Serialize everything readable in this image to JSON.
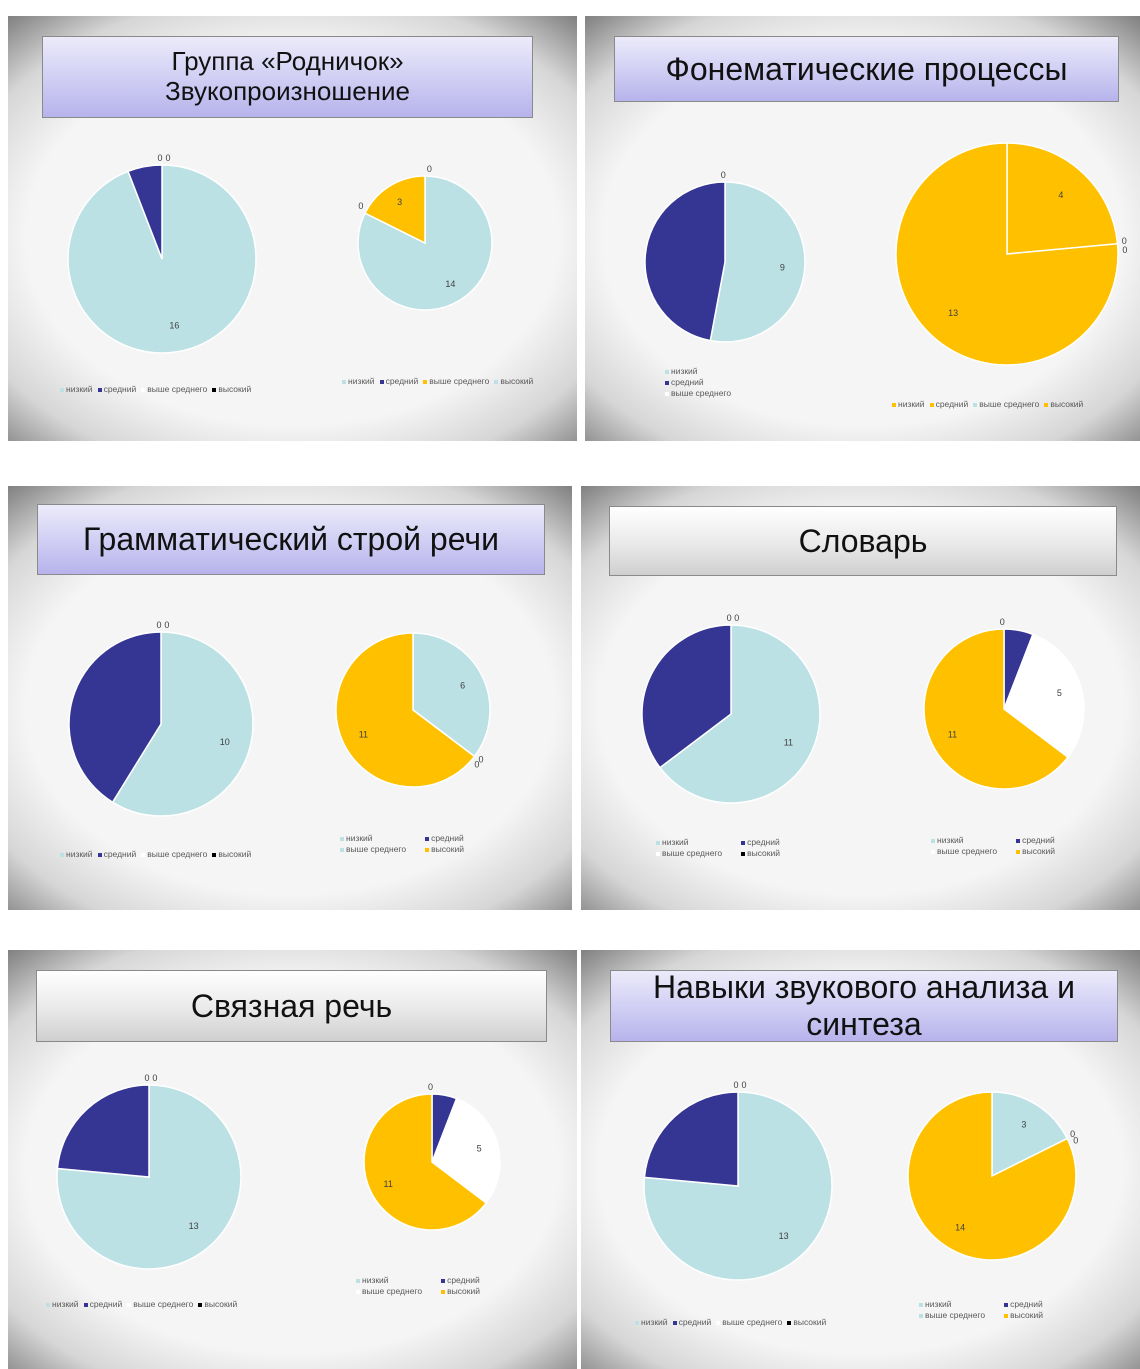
{
  "colors": {
    "low": "#BCE1E5",
    "medium": "#353594",
    "above": "#FFFFFF",
    "high": "#FFC000"
  },
  "panels": [
    {
      "title": "Группа «Родничок»\nЗвукопроизношение",
      "title_style": "blue"
    },
    {
      "title": "Фонематические процессы",
      "title_style": "blue"
    },
    {
      "title": "Грамматический строй речи",
      "title_style": "blue"
    },
    {
      "title": "Словарь",
      "title_style": "gray"
    },
    {
      "title": "Связная речь",
      "title_style": "gray"
    },
    {
      "title": "Навыки звукового анализа и синтеза",
      "title_style": "blue"
    }
  ],
  "chart_data": [
    {
      "type": "pie",
      "categories": [
        "низкий",
        "средний",
        "выше среднего",
        "высокий"
      ],
      "values": [
        16,
        1,
        0,
        0
      ],
      "colors": [
        "#BCE1E5",
        "#353594",
        "#FFFFFF",
        "#000000"
      ],
      "labels": [
        "16",
        "",
        "0",
        "0"
      ]
    },
    {
      "type": "pie",
      "categories": [
        "низкий",
        "средний",
        "выше среднего",
        "высокий"
      ],
      "values": [
        14,
        0,
        3,
        0
      ],
      "colors": [
        "#BCE1E5",
        "#353594",
        "#FFC000",
        "#BCE1E5"
      ],
      "labels": [
        "14",
        "0",
        "3",
        "0"
      ]
    },
    {
      "type": "pie",
      "categories": [
        "низкий",
        "средний",
        "выше среднего"
      ],
      "values": [
        9,
        8,
        0
      ],
      "colors": [
        "#BCE1E5",
        "#353594",
        "#FFFFFF"
      ],
      "labels": [
        "9",
        "",
        "0"
      ]
    },
    {
      "type": "pie",
      "categories": [
        "низкий",
        "средний",
        "выше среднего",
        "высокий"
      ],
      "values": [
        4,
        0,
        0,
        13
      ],
      "colors": [
        "#FFC000",
        "#FFC000",
        "#BCE1E5",
        "#FFC000"
      ],
      "labels": [
        "4",
        "0",
        "0",
        "13"
      ]
    },
    {
      "type": "pie",
      "categories": [
        "низкий",
        "средний",
        "выше среднего",
        "высокий"
      ],
      "values": [
        10,
        7,
        0,
        0
      ],
      "colors": [
        "#BCE1E5",
        "#353594",
        "#FFFFFF",
        "#000000"
      ],
      "labels": [
        "10",
        "",
        "0",
        "0"
      ]
    },
    {
      "type": "pie",
      "categories": [
        "низкий",
        "средний",
        "выше среднего",
        "высокий"
      ],
      "values": [
        6,
        0,
        0,
        11
      ],
      "colors": [
        "#BCE1E5",
        "#353594",
        "#BCE1E5",
        "#FFC000"
      ],
      "labels": [
        "6",
        "0",
        "0",
        "11"
      ]
    },
    {
      "type": "pie",
      "categories": [
        "низкий",
        "средний",
        "выше среднего",
        "высокий"
      ],
      "values": [
        11,
        6,
        0,
        0
      ],
      "colors": [
        "#BCE1E5",
        "#353594",
        "#FFFFFF",
        "#000000"
      ],
      "labels": [
        "11",
        "",
        "0",
        "0"
      ]
    },
    {
      "type": "pie",
      "categories": [
        "низкий",
        "средний",
        "выше среднего",
        "высокий"
      ],
      "values": [
        0,
        1,
        5,
        11
      ],
      "colors": [
        "#BCE1E5",
        "#353594",
        "#FFFFFF",
        "#FFC000"
      ],
      "labels": [
        "0",
        "",
        "5",
        "11"
      ]
    },
    {
      "type": "pie",
      "categories": [
        "низкий",
        "средний",
        "выше среднего",
        "высокий"
      ],
      "values": [
        13,
        4,
        0,
        0
      ],
      "colors": [
        "#BCE1E5",
        "#353594",
        "#FFFFFF",
        "#000000"
      ],
      "labels": [
        "13",
        "",
        "0",
        "0"
      ]
    },
    {
      "type": "pie",
      "categories": [
        "низкий",
        "средний",
        "выше среднего",
        "высокий"
      ],
      "values": [
        0,
        1,
        5,
        11
      ],
      "colors": [
        "#BCE1E5",
        "#353594",
        "#FFFFFF",
        "#FFC000"
      ],
      "labels": [
        "0",
        "",
        "5",
        "11"
      ]
    },
    {
      "type": "pie",
      "categories": [
        "низкий",
        "средний",
        "выше среднего",
        "высокий"
      ],
      "values": [
        13,
        4,
        0,
        0
      ],
      "colors": [
        "#BCE1E5",
        "#353594",
        "#FFFFFF",
        "#000000"
      ],
      "labels": [
        "13",
        "",
        "0",
        "0"
      ]
    },
    {
      "type": "pie",
      "categories": [
        "низкий",
        "средний",
        "выше среднего",
        "высокий"
      ],
      "values": [
        3,
        0,
        0,
        14
      ],
      "colors": [
        "#BCE1E5",
        "#353594",
        "#BCE1E5",
        "#FFC000"
      ],
      "labels": [
        "3",
        "0",
        "0",
        "14"
      ]
    }
  ]
}
